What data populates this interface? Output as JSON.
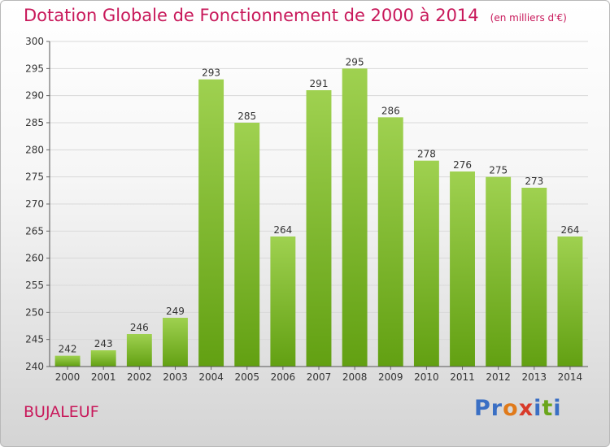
{
  "header": {
    "title": "Dotation Globale de Fonctionnement de 2000 à 2014",
    "unit": "(en milliers d'€)"
  },
  "footer": {
    "town": "BUJALEUF",
    "brand": "Proxiti"
  },
  "colors": {
    "accent": "#c8185a",
    "bar_light": "#9fd150",
    "bar_dark": "#62a012",
    "logo": [
      "#3a6fc4",
      "#3a6fc4",
      "#e07a1a",
      "#d83a2a",
      "#3a6fc4",
      "#6aa51a",
      "#3a6fc4"
    ]
  },
  "chart_data": {
    "type": "bar",
    "categories": [
      "2000",
      "2001",
      "2002",
      "2003",
      "2004",
      "2005",
      "2006",
      "2007",
      "2008",
      "2009",
      "2010",
      "2011",
      "2012",
      "2013",
      "2014"
    ],
    "values": [
      242,
      243,
      246,
      249,
      293,
      285,
      264,
      291,
      295,
      286,
      278,
      276,
      275,
      273,
      264
    ],
    "data_labels": [
      "242",
      "243",
      "246",
      "249",
      "293",
      "285",
      "264",
      "291",
      "295",
      "286",
      "278",
      "276",
      "275",
      "273",
      "264"
    ],
    "ylim": [
      240,
      300
    ],
    "yticks": [
      240,
      245,
      250,
      255,
      260,
      265,
      270,
      275,
      280,
      285,
      290,
      295,
      300
    ],
    "grid": true,
    "legend": "none"
  }
}
